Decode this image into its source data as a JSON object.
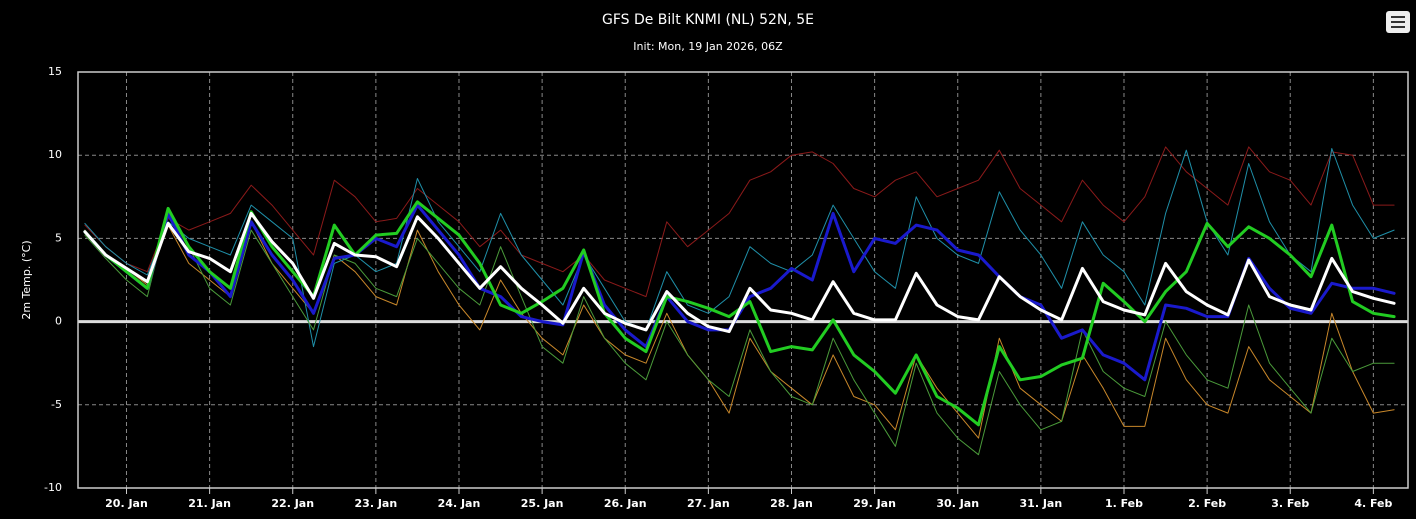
{
  "chart_data": {
    "type": "line",
    "title": "GFS De Bilt KNMI (NL) 52N, 5E",
    "subtitle": "Init: Mon, 19 Jan 2026, 06Z",
    "y_label": "2m Temp. (°C)",
    "ylim": [
      -10,
      15
    ],
    "yticks": [
      -10,
      -5,
      0,
      5,
      10,
      15
    ],
    "xlim": [
      "2026-01-19T10:00",
      "2026-02-04T10:00"
    ],
    "xticks": [
      {
        "value": "2026-01-20T00:00",
        "label": "20. Jan"
      },
      {
        "value": "2026-01-21T00:00",
        "label": "21. Jan"
      },
      {
        "value": "2026-01-22T00:00",
        "label": "22. Jan"
      },
      {
        "value": "2026-01-23T00:00",
        "label": "23. Jan"
      },
      {
        "value": "2026-01-24T00:00",
        "label": "24. Jan"
      },
      {
        "value": "2026-01-25T00:00",
        "label": "25. Jan"
      },
      {
        "value": "2026-01-26T00:00",
        "label": "26. Jan"
      },
      {
        "value": "2026-01-27T00:00",
        "label": "27. Jan"
      },
      {
        "value": "2026-01-28T00:00",
        "label": "28. Jan"
      },
      {
        "value": "2026-01-29T00:00",
        "label": "29. Jan"
      },
      {
        "value": "2026-01-30T00:00",
        "label": "30. Jan"
      },
      {
        "value": "2026-01-31T00:00",
        "label": "31. Jan"
      },
      {
        "value": "2026-02-01T00:00",
        "label": "1. Feb"
      },
      {
        "value": "2026-02-02T00:00",
        "label": "2. Feb"
      },
      {
        "value": "2026-02-03T00:00",
        "label": "3. Feb"
      },
      {
        "value": "2026-02-04T00:00",
        "label": "4. Feb"
      }
    ],
    "grid": true,
    "zero_line": true,
    "x": [
      "2026-01-19T12:00",
      "2026-01-19T18:00",
      "2026-01-20T00:00",
      "2026-01-20T06:00",
      "2026-01-20T12:00",
      "2026-01-20T18:00",
      "2026-01-21T00:00",
      "2026-01-21T06:00",
      "2026-01-21T12:00",
      "2026-01-21T18:00",
      "2026-01-22T00:00",
      "2026-01-22T06:00",
      "2026-01-22T12:00",
      "2026-01-22T18:00",
      "2026-01-23T00:00",
      "2026-01-23T06:00",
      "2026-01-23T12:00",
      "2026-01-23T18:00",
      "2026-01-24T00:00",
      "2026-01-24T06:00",
      "2026-01-24T12:00",
      "2026-01-24T18:00",
      "2026-01-25T00:00",
      "2026-01-25T06:00",
      "2026-01-25T12:00",
      "2026-01-25T18:00",
      "2026-01-26T00:00",
      "2026-01-26T06:00",
      "2026-01-26T12:00",
      "2026-01-26T18:00",
      "2026-01-27T00:00",
      "2026-01-27T06:00",
      "2026-01-27T12:00",
      "2026-01-27T18:00",
      "2026-01-28T00:00",
      "2026-01-28T06:00",
      "2026-01-28T12:00",
      "2026-01-28T18:00",
      "2026-01-29T00:00",
      "2026-01-29T06:00",
      "2026-01-29T12:00",
      "2026-01-29T18:00",
      "2026-01-30T00:00",
      "2026-01-30T06:00",
      "2026-01-30T12:00",
      "2026-01-30T18:00",
      "2026-01-31T00:00",
      "2026-01-31T06:00",
      "2026-01-31T12:00",
      "2026-01-31T18:00",
      "2026-02-01T00:00",
      "2026-02-01T06:00",
      "2026-02-01T12:00",
      "2026-02-01T18:00",
      "2026-02-02T00:00",
      "2026-02-02T06:00",
      "2026-02-02T12:00",
      "2026-02-02T18:00",
      "2026-02-03T00:00",
      "2026-02-03T06:00",
      "2026-02-03T12:00",
      "2026-02-03T18:00",
      "2026-02-04T00:00",
      "2026-02-04T06:00"
    ],
    "series": [
      {
        "color": "#8b1a1a",
        "width": 1,
        "values": [
          5.8,
          4.5,
          3.5,
          3.0,
          6.2,
          5.5,
          6.0,
          6.5,
          8.2,
          7.0,
          5.5,
          4.0,
          8.5,
          7.5,
          6.0,
          6.2,
          8.0,
          7.0,
          6.0,
          4.5,
          5.5,
          4.0,
          3.5,
          3.0,
          4.0,
          2.5,
          2.0,
          1.5,
          6.0,
          4.5,
          5.5,
          6.5,
          8.5,
          9.0,
          10.0,
          10.2,
          9.5,
          8.0,
          7.5,
          8.5,
          9.0,
          7.5,
          8.0,
          8.5,
          10.3,
          8.0,
          7.0,
          6.0,
          8.5,
          7.0,
          6.0,
          7.5,
          10.5,
          9.0,
          8.0,
          7.0,
          10.5,
          9.0,
          8.5,
          7.0,
          10.2,
          10.0,
          7.0,
          7.0
        ]
      },
      {
        "color": "#c8872a",
        "width": 1,
        "values": [
          5.5,
          4.0,
          3.2,
          2.2,
          5.8,
          3.5,
          2.5,
          1.5,
          6.0,
          3.5,
          2.0,
          0.5,
          4.0,
          3.0,
          1.5,
          1.0,
          5.5,
          3.0,
          1.0,
          -0.5,
          2.5,
          0.5,
          -1.0,
          -2.0,
          1.0,
          -1.0,
          -2.0,
          -2.5,
          0.5,
          -2.0,
          -3.5,
          -5.5,
          -1.0,
          -3.0,
          -4.0,
          -5.0,
          -2.0,
          -4.5,
          -5.0,
          -6.5,
          -2.0,
          -4.0,
          -5.5,
          -7.0,
          -1.0,
          -4.0,
          -5.0,
          -6.0,
          -2.0,
          -4.0,
          -6.3,
          -6.3,
          -1.0,
          -3.5,
          -5.0,
          -5.5,
          -1.5,
          -3.5,
          -4.5,
          -5.5,
          0.5,
          -3.0,
          -5.5,
          -5.3
        ]
      },
      {
        "color": "#1f8fa8",
        "width": 1,
        "values": [
          5.9,
          4.5,
          3.5,
          2.8,
          6.0,
          5.0,
          4.5,
          4.0,
          7.0,
          6.0,
          5.0,
          -1.5,
          3.5,
          4.0,
          3.0,
          3.5,
          8.6,
          6.0,
          4.5,
          3.0,
          6.5,
          4.0,
          2.5,
          1.0,
          4.0,
          2.0,
          0.0,
          -0.5,
          3.0,
          1.0,
          0.5,
          1.5,
          4.5,
          3.5,
          3.0,
          4.0,
          7.0,
          5.0,
          3.0,
          2.0,
          7.5,
          5.0,
          4.0,
          3.5,
          7.8,
          5.5,
          4.0,
          2.0,
          6.0,
          4.0,
          3.0,
          1.0,
          6.5,
          10.3,
          6.0,
          4.0,
          9.5,
          6.0,
          4.0,
          3.0,
          10.4,
          7.0,
          5.0,
          5.5
        ]
      },
      {
        "color": "#4a9a3a",
        "width": 1,
        "values": [
          5.2,
          3.8,
          2.5,
          1.5,
          6.5,
          4.5,
          2.0,
          1.0,
          5.5,
          3.5,
          1.5,
          -0.5,
          4.0,
          3.5,
          2.0,
          1.5,
          5.0,
          3.5,
          2.0,
          1.0,
          4.5,
          1.5,
          -1.5,
          -2.5,
          1.5,
          -1.0,
          -2.5,
          -3.5,
          0.0,
          -2.0,
          -3.5,
          -4.5,
          -0.5,
          -3.0,
          -4.5,
          -5.0,
          -1.0,
          -3.5,
          -5.5,
          -7.5,
          -2.5,
          -5.5,
          -7.0,
          -8.0,
          -3.0,
          -5.0,
          -6.5,
          -6.0,
          -0.5,
          -3.0,
          -4.0,
          -4.5,
          0.0,
          -2.0,
          -3.5,
          -4.0,
          1.0,
          -2.5,
          -4.0,
          -5.5,
          -1.0,
          -3.0,
          -2.5,
          -2.5
        ]
      },
      {
        "color": "#1a1acc",
        "width": 3,
        "values": [
          5.4,
          4.0,
          3.0,
          2.0,
          6.5,
          4.0,
          3.0,
          1.5,
          6.0,
          4.0,
          2.5,
          0.5,
          3.8,
          4.0,
          5.0,
          4.5,
          7.0,
          5.5,
          4.0,
          2.0,
          1.5,
          0.3,
          0.0,
          -0.2,
          4.2,
          1.0,
          -0.5,
          -1.5,
          1.5,
          0.0,
          -0.5,
          -0.5,
          1.5,
          2.0,
          3.2,
          2.5,
          6.5,
          3.0,
          5.0,
          4.7,
          5.8,
          5.5,
          4.3,
          4.0,
          2.7,
          1.5,
          1.0,
          -1.0,
          -0.5,
          -2.0,
          -2.5,
          -3.5,
          1.0,
          0.8,
          0.3,
          0.3,
          3.8,
          2.0,
          0.8,
          0.5,
          2.3,
          2.0,
          2.0,
          1.7
        ]
      },
      {
        "color": "#22cc22",
        "width": 3,
        "values": [
          5.4,
          4.0,
          3.0,
          2.0,
          6.8,
          4.5,
          3.0,
          2.0,
          6.6,
          4.5,
          3.0,
          1.5,
          5.8,
          4.0,
          5.2,
          5.3,
          7.2,
          6.2,
          5.2,
          3.5,
          1.0,
          0.5,
          1.2,
          2.0,
          4.3,
          0.5,
          -1.0,
          -1.8,
          1.5,
          1.2,
          0.8,
          0.3,
          1.2,
          -1.8,
          -1.5,
          -1.7,
          0.1,
          -2.0,
          -3.0,
          -4.3,
          -2.0,
          -4.5,
          -5.2,
          -6.2,
          -1.5,
          -3.5,
          -3.3,
          -2.6,
          -2.2,
          2.3,
          1.2,
          0.0,
          1.8,
          3.0,
          5.9,
          4.5,
          5.7,
          5.0,
          4.0,
          2.7,
          5.8,
          1.2,
          0.5,
          0.3
        ]
      },
      {
        "color": "#ffffff",
        "width": 3,
        "values": [
          5.4,
          4.0,
          3.2,
          2.4,
          5.9,
          4.2,
          3.8,
          3.0,
          6.5,
          4.8,
          3.5,
          1.4,
          4.7,
          4.0,
          3.9,
          3.3,
          6.3,
          5.0,
          3.5,
          2.0,
          3.3,
          2.0,
          1.0,
          -0.1,
          2.0,
          0.5,
          -0.1,
          -0.5,
          1.8,
          0.5,
          -0.3,
          -0.6,
          2.0,
          0.7,
          0.5,
          0.1,
          2.4,
          0.5,
          0.1,
          0.1,
          2.9,
          1.0,
          0.3,
          0.1,
          2.7,
          1.5,
          0.7,
          0.1,
          3.2,
          1.2,
          0.7,
          0.4,
          3.5,
          1.8,
          1.0,
          0.4,
          3.7,
          1.5,
          1.0,
          0.7,
          3.8,
          1.8,
          1.4,
          1.1
        ]
      }
    ]
  }
}
